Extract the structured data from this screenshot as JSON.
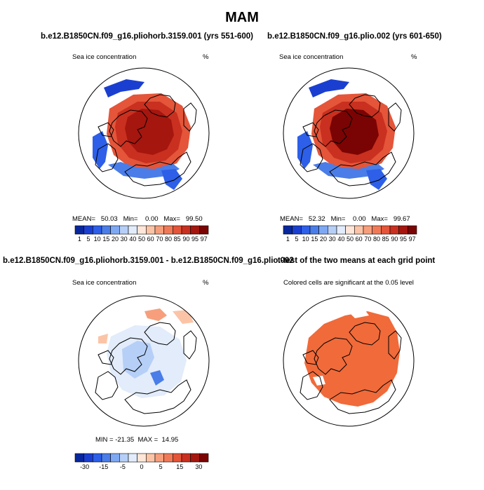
{
  "title": "MAM",
  "palettes": {
    "ice": [
      "#08279c",
      "#1a3fd0",
      "#2d5fe8",
      "#4a7de8",
      "#7fa8f2",
      "#b6cff7",
      "#e2ecfb",
      "#ffe6d8",
      "#fcc4a7",
      "#f79f7c",
      "#f07a58",
      "#e4553a",
      "#c9301f",
      "#a5160f",
      "#7a0403"
    ],
    "diff": [
      "#08279c",
      "#1a3fd0",
      "#2d5fe8",
      "#4a7de8",
      "#7fa8f2",
      "#b6cff7",
      "#e2ecfb",
      "#ffe6d8",
      "#fcc4a7",
      "#f79f7c",
      "#f07a58",
      "#e4553a",
      "#c9301f",
      "#a5160f",
      "#7a0403"
    ],
    "sig": "#f06a3a"
  },
  "panels": [
    {
      "title": "b.e12.B1850CN.f09_g16.pliohorb.3159.001 (yrs 551-600)",
      "left_label": "Sea ice concentration",
      "right_label": "%",
      "stats": "MEAN=   50.03   Min=    0.00   Max=   99.50",
      "colorbar_labels": [
        "1",
        "5",
        "10",
        "15",
        "20",
        "30",
        "40",
        "50",
        "60",
        "70",
        "80",
        "85",
        "90",
        "95",
        "97"
      ]
    },
    {
      "title": "b.e12.B1850CN.f09_g16.plio.002 (yrs 601-650)",
      "left_label": "Sea ice concentration",
      "right_label": "%",
      "stats": "MEAN=   52.32   Min=    0.00   Max=   99.67",
      "colorbar_labels": [
        "1",
        "5",
        "10",
        "15",
        "20",
        "30",
        "40",
        "50",
        "60",
        "70",
        "80",
        "85",
        "90",
        "95",
        "97"
      ]
    },
    {
      "title": "b.e12.B1850CN.f09_g16.pliohorb.3159.001 - b.e12.B1850CN.f09_g16.plio.002",
      "left_label": "Sea ice concentration",
      "right_label": "%",
      "stats": "MIN = -21.35  MAX =  14.95",
      "colorbar_labels": [
        "-30",
        "-15",
        "-5",
        "0",
        "5",
        "15",
        "30"
      ]
    },
    {
      "title": "t-test of the two means at each grid point",
      "subtitle": "Colored cells are significant at the 0.05 level"
    }
  ]
}
